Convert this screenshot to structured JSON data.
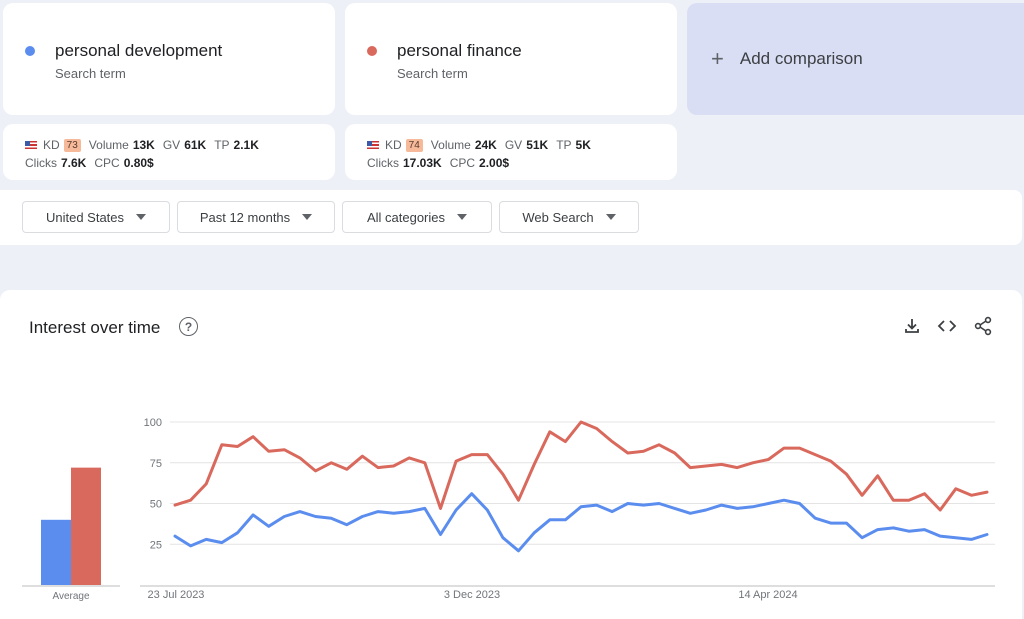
{
  "terms": [
    {
      "name": "personal development",
      "subtitle": "Search term",
      "color": "#5b8def",
      "metrics": {
        "kd_label": "KD",
        "kd": "73",
        "volume_label": "Volume",
        "volume": "13K",
        "gv_label": "GV",
        "gv": "61K",
        "tp_label": "TP",
        "tp": "2.1K",
        "clicks_label": "Clicks",
        "clicks": "7.6K",
        "cpc_label": "CPC",
        "cpc": "0.80$"
      }
    },
    {
      "name": "personal finance",
      "subtitle": "Search term",
      "color": "#d9695c",
      "metrics": {
        "kd_label": "KD",
        "kd": "74",
        "volume_label": "Volume",
        "volume": "24K",
        "gv_label": "GV",
        "gv": "51K",
        "tp_label": "TP",
        "tp": "5K",
        "clicks_label": "Clicks",
        "clicks": "17.03K",
        "cpc_label": "CPC",
        "cpc": "2.00$"
      }
    }
  ],
  "add_comparison": {
    "icon": "plus-icon",
    "label": "Add comparison"
  },
  "filters": [
    {
      "label": "United States"
    },
    {
      "label": "Past 12 months"
    },
    {
      "label": "All categories"
    },
    {
      "label": "Web Search"
    }
  ],
  "chart": {
    "title": "Interest over time",
    "icons": [
      "help-icon",
      "download-icon",
      "embed-code-icon",
      "share-icon"
    ],
    "average_label": "Average"
  },
  "chart_data": {
    "type": "line",
    "x_tick_labels": [
      "23 Jul 2023",
      "3 Dec 2023",
      "14 Apr 2024"
    ],
    "y_ticks": [
      25,
      50,
      75,
      100
    ],
    "ylim": [
      0,
      100
    ],
    "grid": true,
    "average": [
      {
        "name": "personal development",
        "value": 40
      },
      {
        "name": "personal finance",
        "value": 72
      }
    ],
    "series": [
      {
        "name": "personal development",
        "color": "#5b8def",
        "values": [
          30,
          24,
          28,
          26,
          32,
          43,
          36,
          42,
          45,
          42,
          41,
          37,
          42,
          45,
          44,
          45,
          47,
          31,
          46,
          56,
          46,
          29,
          21,
          32,
          40,
          40,
          48,
          49,
          45,
          50,
          49,
          50,
          47,
          44,
          46,
          49,
          47,
          48,
          50,
          52,
          50,
          41,
          38,
          38,
          29,
          34,
          35,
          33,
          34,
          30,
          29,
          28,
          31
        ]
      },
      {
        "name": "personal finance",
        "color": "#d9695c",
        "values": [
          49,
          52,
          62,
          86,
          85,
          91,
          82,
          83,
          78,
          70,
          75,
          71,
          79,
          72,
          73,
          78,
          75,
          47,
          76,
          80,
          80,
          68,
          52,
          74,
          94,
          88,
          100,
          96,
          88,
          81,
          82,
          86,
          81,
          72,
          73,
          74,
          72,
          75,
          77,
          84,
          84,
          80,
          76,
          68,
          55,
          67,
          52,
          52,
          56,
          46,
          59,
          55,
          57
        ]
      }
    ]
  }
}
